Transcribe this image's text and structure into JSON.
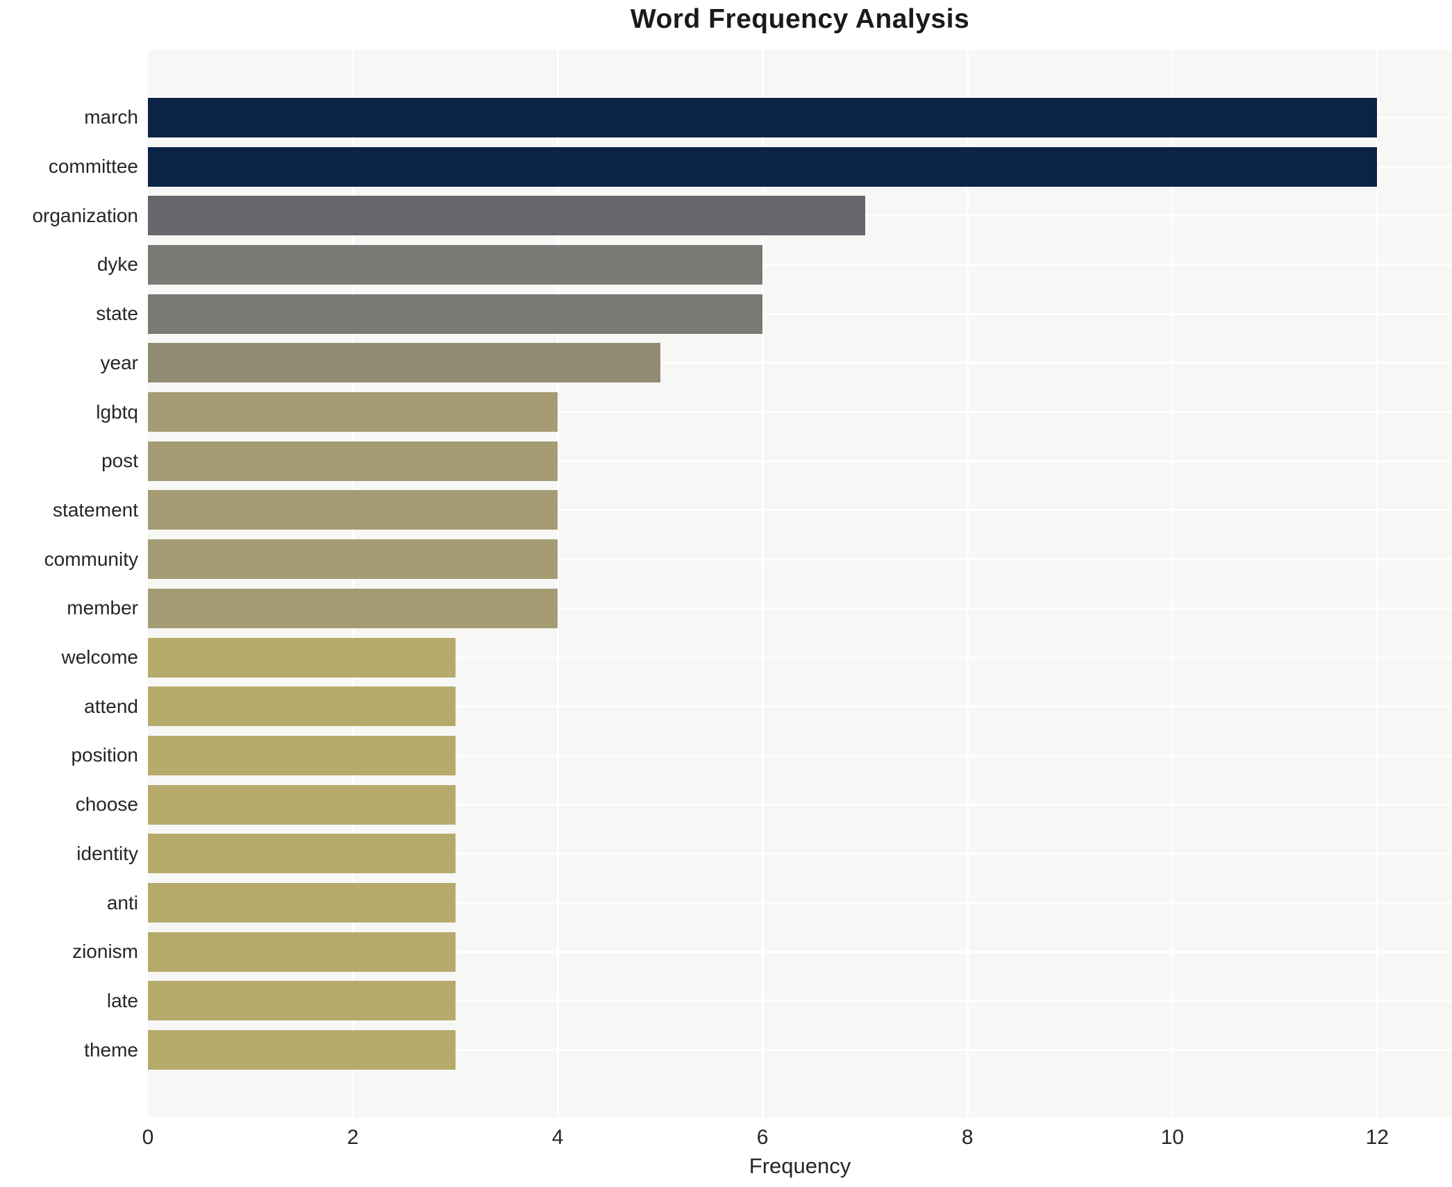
{
  "title": "Word Frequency Analysis",
  "chart_data": {
    "type": "bar",
    "orientation": "horizontal",
    "title": "Word Frequency Analysis",
    "xlabel": "Frequency",
    "ylabel": "",
    "categories": [
      "march",
      "committee",
      "organization",
      "dyke",
      "state",
      "year",
      "lgbtq",
      "post",
      "statement",
      "community",
      "member",
      "welcome",
      "attend",
      "position",
      "choose",
      "identity",
      "anti",
      "zionism",
      "late",
      "theme"
    ],
    "values": [
      12,
      12,
      7,
      6,
      6,
      5,
      4,
      4,
      4,
      4,
      4,
      3,
      3,
      3,
      3,
      3,
      3,
      3,
      3,
      3
    ],
    "bar_colors": [
      "#0a2347",
      "#0a2347",
      "#66666c",
      "#7b7975",
      "#7b7975",
      "#938c74",
      "#a59c73",
      "#a59c73",
      "#a59c73",
      "#a59c73",
      "#a59c73",
      "#b5aa6b",
      "#b5aa6b",
      "#b5aa6b",
      "#b5aa6b",
      "#b5aa6b",
      "#b5aa6b",
      "#b5aa6b",
      "#b5aa6b",
      "#b5aa6b"
    ],
    "xticks": [
      0,
      2,
      4,
      6,
      8,
      10,
      12
    ],
    "xlim": [
      0,
      12.73
    ],
    "grid": true,
    "legend": false,
    "colors": {
      "figure_bg": "#ffffff",
      "plot_bg": "#f7f7f5",
      "grid": "#ffffff",
      "text": "#262626",
      "title_text": "#1a1a1a"
    }
  }
}
